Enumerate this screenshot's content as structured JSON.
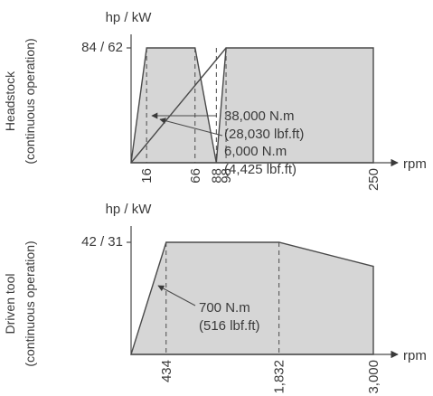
{
  "chart_data": [
    {
      "type": "area",
      "side_label_1": "Headstock",
      "side_label_2": "(continuous operation)",
      "ylabel": "hp / kW",
      "xlabel": "rpm",
      "y_tick_label": "84 / 62",
      "y_tick_value": 84,
      "xlim": [
        0,
        250
      ],
      "ylim": [
        0,
        84
      ],
      "x_ticks": [
        "16",
        "66",
        "88",
        "98",
        "250"
      ],
      "x_tick_values": [
        16,
        66,
        88,
        98,
        250
      ],
      "series": [
        {
          "x": [
            0,
            16,
            66,
            88,
            98,
            250
          ],
          "y": [
            0,
            84,
            84,
            0,
            84,
            84
          ]
        },
        {
          "x": [
            0,
            98
          ],
          "y": [
            0,
            84
          ]
        }
      ],
      "annotations": [
        {
          "line1": "38,000 N.m",
          "line2": "(28,030 lbf.ft)"
        },
        {
          "line1": "6,000 N.m",
          "line2": "(4,425 lbf.ft)"
        }
      ]
    },
    {
      "type": "area",
      "side_label_1": "Driven tool",
      "side_label_2": "(continuous operation)",
      "ylabel": "hp / kW",
      "xlabel": "rpm",
      "y_tick_label": "42 / 31",
      "y_tick_value": 42,
      "xlim": [
        0,
        3000
      ],
      "ylim": [
        0,
        42
      ],
      "x_ticks": [
        "434",
        "1,832",
        "3,000"
      ],
      "x_tick_values": [
        434,
        1832,
        3000
      ],
      "series": [
        {
          "x": [
            0,
            434,
            1832,
            3000
          ],
          "y": [
            0,
            42,
            42,
            33
          ]
        }
      ],
      "annotations": [
        {
          "line1": "700 N.m",
          "line2": "(516 lbf.ft)"
        }
      ]
    }
  ]
}
